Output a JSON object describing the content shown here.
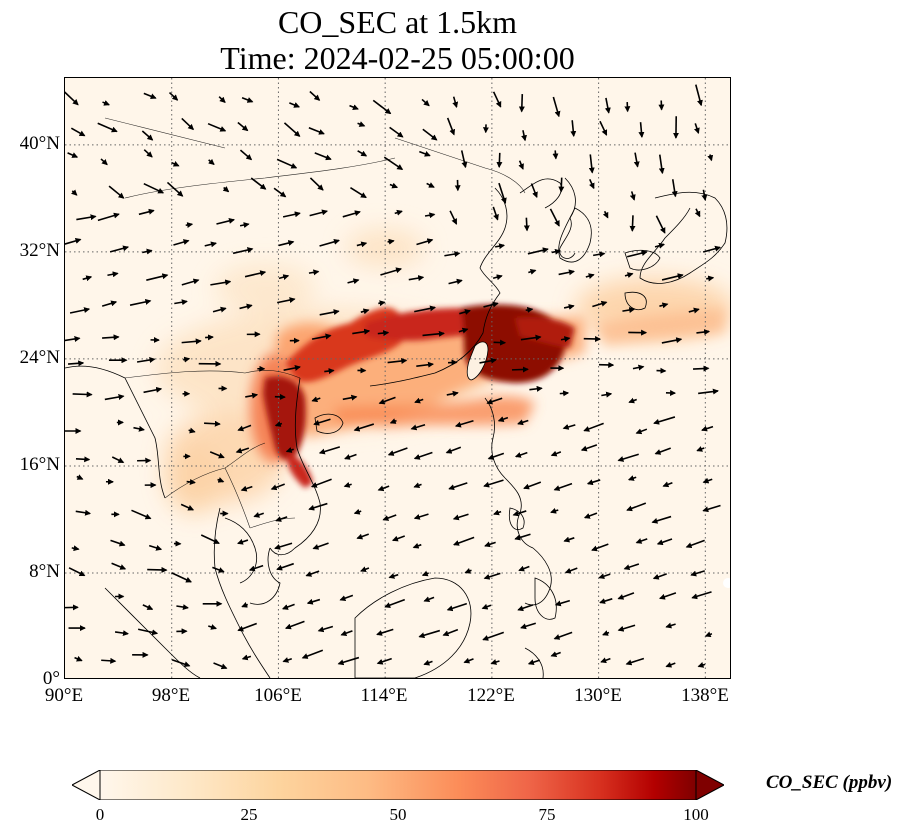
{
  "title": {
    "line1": "CO_SEC at 1.5km",
    "line2": "Time: 2024-02-25 05:00:00"
  },
  "map": {
    "projection": "PlateCarree",
    "lon_range": [
      90,
      140
    ],
    "lat_range": [
      0,
      45
    ],
    "gridlines": "dotted",
    "coastlines": true,
    "borders": true,
    "lat_tick_labels": [
      "0°",
      "8°N",
      "16°N",
      "24°N",
      "32°N",
      "40°N"
    ],
    "lon_tick_labels": [
      "90°E",
      "98°E",
      "106°E",
      "114°E",
      "122°E",
      "130°E",
      "138°E"
    ]
  },
  "chart_data": {
    "type": "heatmap",
    "variable": "CO_SEC",
    "units": "ppbv",
    "level": "1.5km",
    "time": "2024-02-25 05:00:00",
    "colormap": "OrRd",
    "vmin": 0,
    "vmax": 100,
    "extend": "both",
    "plumes": [
      {
        "description": "main plume core over Taiwan Strait / East China Sea",
        "lon": [
          120,
          127
        ],
        "lat": [
          22,
          27.5
        ],
        "value": 100
      },
      {
        "description": "southern China band",
        "lon": [
          106,
          122
        ],
        "lat": [
          20,
          27
        ],
        "value": 70
      },
      {
        "description": "Gulf of Tonkin / Vietnam coast",
        "lon": [
          105,
          109
        ],
        "lat": [
          16,
          22
        ],
        "value": 85
      },
      {
        "description": "eastward outflow toward Japan",
        "lon": [
          127,
          140
        ],
        "lat": [
          24,
          29
        ],
        "value": 25
      },
      {
        "description": "South China Sea return flow",
        "lon": [
          110,
          122
        ],
        "lat": [
          17,
          20
        ],
        "value": 40
      },
      {
        "description": "Indochina background",
        "lon": [
          98,
          110
        ],
        "lat": [
          14,
          22
        ],
        "value": 15
      }
    ],
    "wind_vectors": "quiver overlay: westerlies north of ~22°N, north-easterly monsoon flow over South China Sea",
    "colorbar": {
      "label": "CO_SEC (ppbv)",
      "ticks": [
        0,
        25,
        50,
        75,
        100
      ],
      "tick_labels": [
        "0",
        "25",
        "50",
        "75",
        "100"
      ]
    }
  },
  "colors": {
    "ocean_background": "#fff6ea",
    "low": "#fee8c8",
    "mid": "#fc8d59",
    "high": "#d7301f",
    "max": "#7f0000"
  }
}
